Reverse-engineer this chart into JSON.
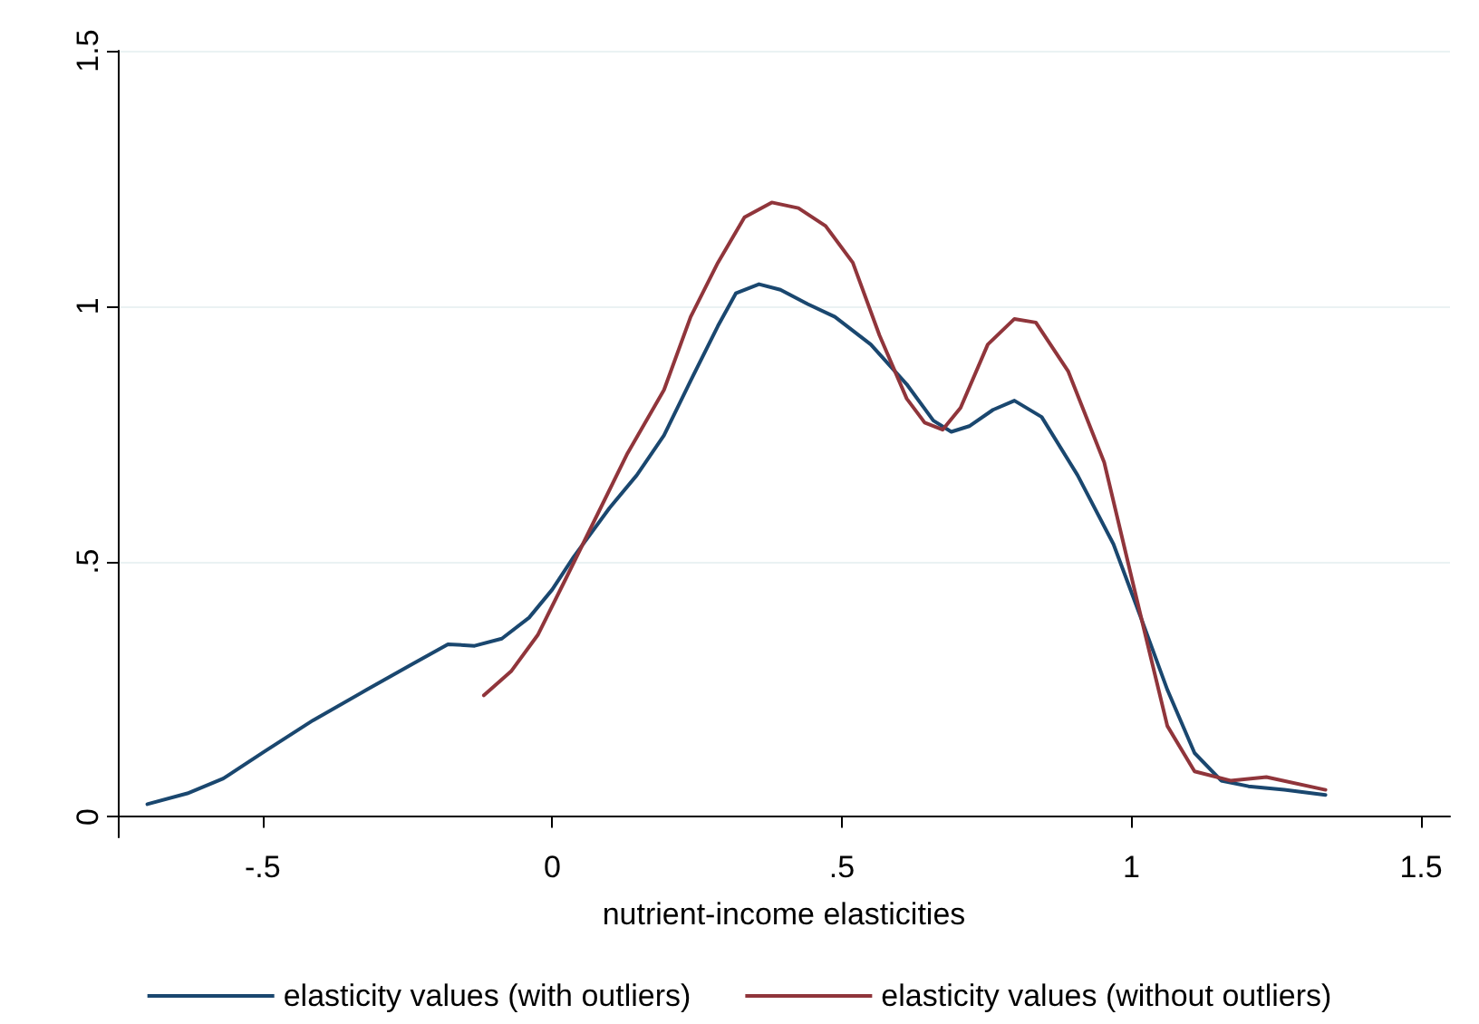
{
  "chart_data": {
    "type": "line",
    "xlabel": "nutrient-income elasticities",
    "xlim": [
      -0.75,
      1.55
    ],
    "ylim": [
      -0.04,
      1.5
    ],
    "xticks": [
      {
        "value": -0.5,
        "label": "-.5"
      },
      0,
      {
        "value": 0.5,
        "label": ".5"
      },
      1,
      1.5
    ],
    "yticks": [
      0,
      {
        "value": 0.5,
        "label": ".5"
      },
      1,
      1.5
    ],
    "grid": "y",
    "legend": "bottom",
    "marker": "none",
    "line_style": "solid",
    "series": [
      {
        "name": "elasticity values (with outliers)",
        "color": "#1a476f",
        "x": [
          -0.699,
          -0.63,
          -0.568,
          -0.497,
          -0.413,
          -0.32,
          -0.242,
          -0.18,
          -0.134,
          -0.087,
          -0.04,
          0,
          0.037,
          0.099,
          0.146,
          0.193,
          0.239,
          0.286,
          0.317,
          0.357,
          0.394,
          0.441,
          0.488,
          0.55,
          0.612,
          0.658,
          0.689,
          0.72,
          0.761,
          0.798,
          0.845,
          0.907,
          0.969,
          1.016,
          1.062,
          1.109,
          1.155,
          1.202,
          1.264,
          1.335
        ],
        "values": [
          0.025,
          0.046,
          0.075,
          0.128,
          0.189,
          0.249,
          0.299,
          0.338,
          0.335,
          0.349,
          0.39,
          0.445,
          0.509,
          0.605,
          0.669,
          0.747,
          0.854,
          0.961,
          1.025,
          1.043,
          1.032,
          1.004,
          0.979,
          0.925,
          0.847,
          0.776,
          0.754,
          0.765,
          0.797,
          0.815,
          0.783,
          0.669,
          0.534,
          0.391,
          0.249,
          0.125,
          0.071,
          0.06,
          0.053,
          0.043
        ]
      },
      {
        "name": "elasticity values (without outliers)",
        "color": "#90353b",
        "x": [
          -0.118,
          -0.071,
          -0.025,
          0.022,
          0.068,
          0.13,
          0.193,
          0.239,
          0.286,
          0.332,
          0.379,
          0.425,
          0.472,
          0.519,
          0.565,
          0.612,
          0.643,
          0.674,
          0.705,
          0.752,
          0.798,
          0.835,
          0.891,
          0.953,
          1.009,
          1.062,
          1.109,
          1.171,
          1.233,
          1.335
        ],
        "values": [
          0.238,
          0.285,
          0.356,
          0.463,
          0.569,
          0.712,
          0.836,
          0.979,
          1.085,
          1.174,
          1.203,
          1.192,
          1.157,
          1.085,
          0.943,
          0.819,
          0.772,
          0.758,
          0.801,
          0.925,
          0.975,
          0.968,
          0.872,
          0.694,
          0.427,
          0.178,
          0.089,
          0.071,
          0.078,
          0.053
        ]
      }
    ]
  }
}
